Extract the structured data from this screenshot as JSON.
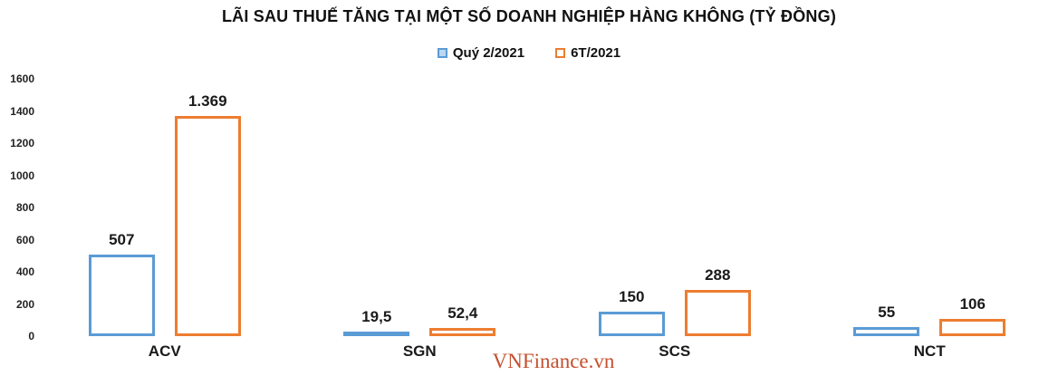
{
  "chart_data": {
    "type": "bar",
    "title": "LÃI SAU THUẾ TĂNG TẠI MỘT SỐ DOANH NGHIỆP HÀNG KHÔNG (TỶ ĐỒNG)",
    "categories": [
      "ACV",
      "SGN",
      "SCS",
      "NCT"
    ],
    "series": [
      {
        "name": "Quý 2/2021",
        "color": "#5B9BD5",
        "key_fill": "#BDD7EE",
        "values": [
          507,
          19.5,
          150,
          55
        ],
        "value_labels": [
          "507",
          "19,5",
          "150",
          "55"
        ]
      },
      {
        "name": "6T/2021",
        "color": "#ED7D31",
        "key_fill": "#FFFFFF",
        "values": [
          1369,
          52.4,
          288,
          106
        ],
        "value_labels": [
          "1.369",
          "52,4",
          "288",
          "106"
        ]
      }
    ],
    "ylim": [
      0,
      1600
    ],
    "yticks": [
      0,
      200,
      400,
      600,
      800,
      1000,
      1200,
      1400,
      1600
    ],
    "grid": false,
    "legend_position": "top",
    "bar_fill": "outline"
  },
  "watermark": {
    "text": "VNFinance.vn",
    "color": "#C4502E"
  }
}
